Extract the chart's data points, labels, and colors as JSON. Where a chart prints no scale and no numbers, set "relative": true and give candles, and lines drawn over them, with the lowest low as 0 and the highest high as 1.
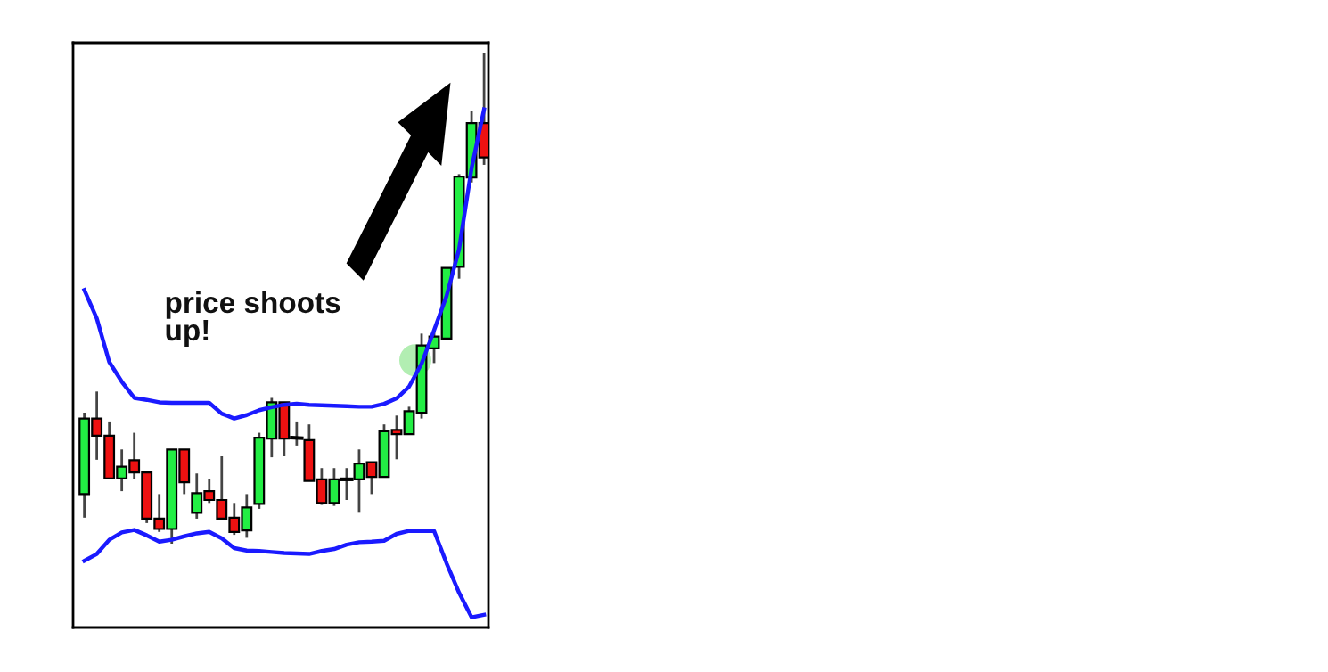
{
  "chart_data": {
    "type": "candlestick",
    "relative": true,
    "tick_labels": false,
    "grid": false,
    "annotations": [
      "price shoots\nup!"
    ],
    "categories": [
      null,
      null,
      null,
      null,
      null,
      null,
      null,
      null,
      null,
      null,
      null,
      null,
      null,
      null,
      null,
      null,
      null,
      null,
      null,
      null,
      null,
      null,
      null,
      null,
      null,
      null,
      null,
      null,
      null,
      null,
      null,
      null,
      null
    ],
    "ohlc": [
      [
        0.101,
        0.267,
        0.053,
        0.255
      ],
      [
        0.255,
        0.31,
        0.171,
        0.22
      ],
      [
        0.22,
        0.249,
        0.133,
        0.133
      ],
      [
        0.133,
        0.192,
        0.107,
        0.157
      ],
      [
        0.17,
        0.226,
        0.131,
        0.145
      ],
      [
        0.145,
        0.145,
        0.042,
        0.051
      ],
      [
        0.051,
        0.101,
        0.024,
        0.03
      ],
      [
        0.03,
        0.192,
        0,
        0.192
      ],
      [
        0.192,
        0.192,
        0.101,
        0.125
      ],
      [
        0.063,
        0.143,
        0.051,
        0.103
      ],
      [
        0.107,
        0.131,
        0.083,
        0.089
      ],
      [
        0.089,
        0.178,
        0.051,
        0.051
      ],
      [
        0.053,
        0.083,
        0.018,
        0.024
      ],
      [
        0.027,
        0.101,
        0.012,
        0.074
      ],
      [
        0.081,
        0.226,
        0.071,
        0.216
      ],
      [
        0.214,
        0.297,
        0.176,
        0.288
      ],
      [
        0.288,
        0.288,
        0.178,
        0.214
      ],
      [
        0.216,
        0.249,
        0.2,
        0.215
      ],
      [
        0.211,
        0.243,
        0.128,
        0.128
      ],
      [
        0.131,
        0.154,
        0.079,
        0.083
      ],
      [
        0.083,
        0.154,
        0.077,
        0.131
      ],
      [
        0.131,
        0.154,
        0.089,
        0.131
      ],
      [
        0.131,
        0.192,
        0.063,
        0.163
      ],
      [
        0.166,
        0.166,
        0.101,
        0.136
      ],
      [
        0.136,
        0.243,
        0.136,
        0.229
      ],
      [
        0.232,
        0.261,
        0.172,
        0.223
      ],
      [
        0.223,
        0.279,
        0.223,
        0.27
      ],
      [
        0.267,
        0.428,
        0.255,
        0.404
      ],
      [
        0.398,
        0.434,
        0.368,
        0.422
      ],
      [
        0.418,
        0.563,
        0.416,
        0.562
      ],
      [
        0.564,
        0.753,
        0.54,
        0.748
      ],
      [
        0.746,
        0.881,
        0.736,
        0.857
      ],
      [
        0.857,
        1,
        0.772,
        0.787
      ]
    ],
    "colors": [
      "#22ee44",
      "#ee1111",
      "#ee1111",
      "#22ee44",
      "#ee1111",
      "#ee1111",
      "#ee1111",
      "#22ee44",
      "#ee1111",
      "#22ee44",
      "#ee1111",
      "#ee1111",
      "#ee1111",
      "#22ee44",
      "#22ee44",
      "#22ee44",
      "#ee1111",
      "#000000",
      "#ee1111",
      "#ee1111",
      "#22ee44",
      "#000000",
      "#22ee44",
      "#ee1111",
      "#22ee44",
      "#ee1111",
      "#22ee44",
      "#22ee44",
      "#22ee44",
      "#22ee44",
      "#22ee44",
      "#22ee44",
      "#ee1111"
    ],
    "series": [
      {
        "type": "line",
        "color": "#1a1aff",
        "values": [
          0.517,
          0.459,
          0.37,
          0.33,
          0.297,
          0.293,
          0.288,
          0.287,
          0.287,
          0.287,
          0.287,
          0.265,
          0.255,
          0.262,
          0.272,
          0.278,
          0.283,
          0.285,
          0.283,
          0.282,
          0.281,
          0.28,
          0.279,
          0.279,
          0.285,
          0.296,
          0.32,
          0.367,
          0.435,
          0.505,
          0.6,
          0.765,
          0.885
        ]
      },
      {
        "type": "line",
        "color": "#1a1aff",
        "values": [
          -0.035,
          -0.021,
          0.008,
          0.023,
          0.028,
          0.017,
          0.004,
          0.008,
          0.015,
          0.021,
          0.024,
          0.011,
          -0.009,
          -0.014,
          -0.015,
          -0.017,
          -0.019,
          -0.02,
          -0.021,
          -0.015,
          -0.011,
          -0.002,
          0.003,
          0.004,
          0.006,
          0.02,
          0.026,
          0.026,
          0.026,
          -0.04,
          -0.1,
          -0.15,
          -0.145
        ]
      }
    ]
  }
}
